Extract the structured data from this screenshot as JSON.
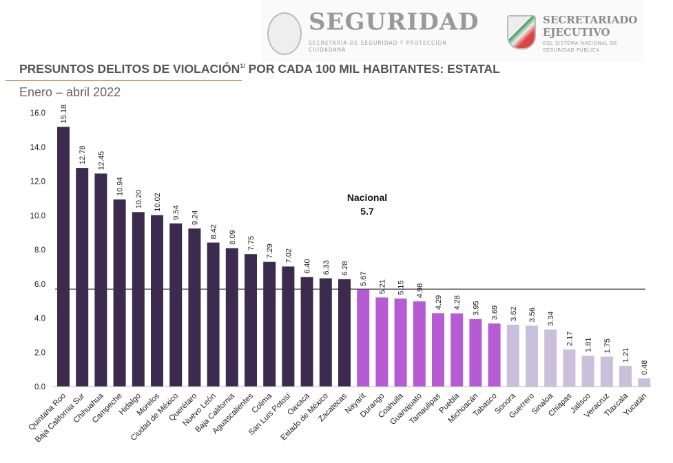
{
  "header": {
    "logo1_title": "SEGURIDAD",
    "logo1_subtitle": "SECRETARÍA DE SEGURIDAD Y PROTECCIÓN CIUDADANA",
    "logo2_title": "SECRETARIADO EJECUTIVO",
    "logo2_subtitle": "DEL SISTEMA NACIONAL DE SEGURIDAD PÚBLICA"
  },
  "chart_data": {
    "type": "bar",
    "title": "PRESUNTOS DELITOS DE VIOLACIÓN",
    "title_superscript": "1/",
    "title_rest": " POR CADA 100 MIL HABITANTES: ESTATAL",
    "subtitle": "Enero – abril 2022",
    "categories": [
      "Quintana Roo",
      "Baja California Sur",
      "Chihuahua",
      "Campeche",
      "Hidalgo",
      "Morelos",
      "Ciudad de México",
      "Querétaro",
      "Nuevo León",
      "Baja California",
      "Aguascalientes",
      "Colima",
      "San Luis Potosí",
      "Oaxaca",
      "Estado de México",
      "Zacatecas",
      "Nayarit",
      "Durango",
      "Coahuila",
      "Guanajuato",
      "Tamaulipas",
      "Puebla",
      "Michoacán",
      "Tabasco",
      "Sonora",
      "Guerrero",
      "Sinaloa",
      "Chiapas",
      "Jalisco",
      "Veracruz",
      "Tlaxcala",
      "Yucatán"
    ],
    "values": [
      15.18,
      12.78,
      12.45,
      10.94,
      10.2,
      10.02,
      9.54,
      9.24,
      8.42,
      8.09,
      7.75,
      7.29,
      7.02,
      6.4,
      6.33,
      6.28,
      5.67,
      5.21,
      5.15,
      4.98,
      4.29,
      4.28,
      3.95,
      3.69,
      3.62,
      3.56,
      3.34,
      2.17,
      1.81,
      1.75,
      1.21,
      0.48
    ],
    "value_labels": [
      "15.18",
      "12.78",
      "12.45",
      "10.94",
      "10.20",
      "10.02",
      "9.54",
      "9.24",
      "8.42",
      "8.09",
      "7.75",
      "7.29",
      "7.02",
      "6.40",
      "6.33",
      "6.28",
      "5.67",
      "5.21",
      "5.15",
      "4.98",
      "4.29",
      "4.28",
      "3.95",
      "3.69",
      "3.62",
      "3.56",
      "3.34",
      "2.17",
      "1.81",
      "1.75",
      "1.21",
      "0.48"
    ],
    "color_groups": [
      "high",
      "high",
      "high",
      "high",
      "high",
      "high",
      "high",
      "high",
      "high",
      "high",
      "high",
      "high",
      "high",
      "high",
      "high",
      "high",
      "mid",
      "mid",
      "mid",
      "mid",
      "mid",
      "mid",
      "mid",
      "mid",
      "low",
      "low",
      "low",
      "low",
      "low",
      "low",
      "low",
      "low"
    ],
    "colors": {
      "high": "#3d2b4f",
      "mid": "#b65bd4",
      "low": "#cac0dc"
    },
    "ylim": [
      0,
      16
    ],
    "yticks": [
      "0.0",
      "2.0",
      "4.0",
      "6.0",
      "8.0",
      "10.0",
      "12.0",
      "14.0",
      "16.0"
    ],
    "grid": false,
    "reference_line": {
      "label": "Nacional",
      "value": 5.7,
      "value_label": "5.7"
    }
  }
}
